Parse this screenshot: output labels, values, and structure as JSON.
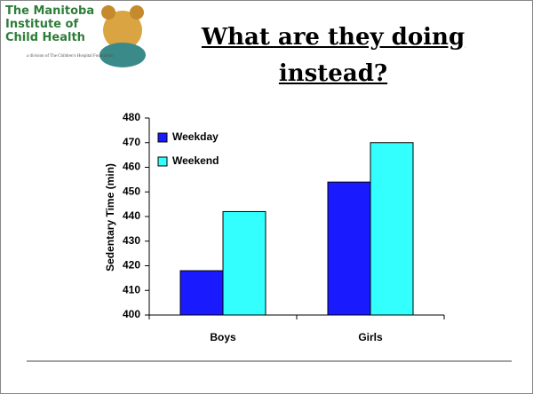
{
  "logo": {
    "lines": [
      "The Manitoba",
      "Institute of",
      "Child Health"
    ],
    "tagline": "a division of The Children's Hospital Foundation"
  },
  "chart_data": {
    "type": "bar",
    "title": "What are they doing instead?",
    "categories": [
      "Boys",
      "Girls"
    ],
    "series": [
      {
        "name": "Weekday",
        "color": "#1a1aff",
        "values": [
          418,
          454
        ]
      },
      {
        "name": "Weekend",
        "color": "#33ffff",
        "values": [
          442,
          470
        ]
      }
    ],
    "y_label": "Sedentary Time (min)",
    "ylim": [
      400,
      480
    ],
    "yticks": [
      400,
      410,
      420,
      430,
      440,
      450,
      460,
      470,
      480
    ],
    "grid": false,
    "legend": "top-left"
  }
}
